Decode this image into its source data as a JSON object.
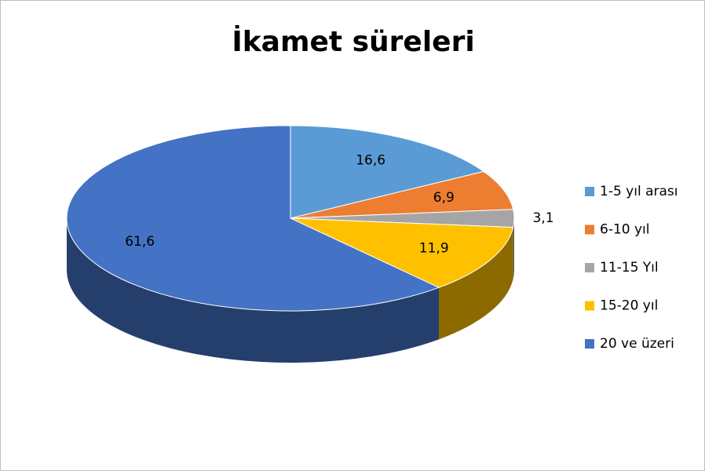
{
  "chart_data": {
    "type": "pie",
    "title": "İkamet süreleri",
    "categories": [
      "1-5 yıl arası",
      "6-10 yıl",
      "11-15 Yıl",
      "15-20 yıl",
      "20 ve üzeri"
    ],
    "values": [
      16.6,
      6.9,
      3.1,
      11.9,
      61.6
    ],
    "value_labels": [
      "16,6",
      "6,9",
      "3,1",
      "11,9",
      "61,6"
    ],
    "colors": [
      "#5b9bd5",
      "#ed7d31",
      "#a5a5a5",
      "#ffc000",
      "#4472c4"
    ],
    "legend": "right"
  }
}
